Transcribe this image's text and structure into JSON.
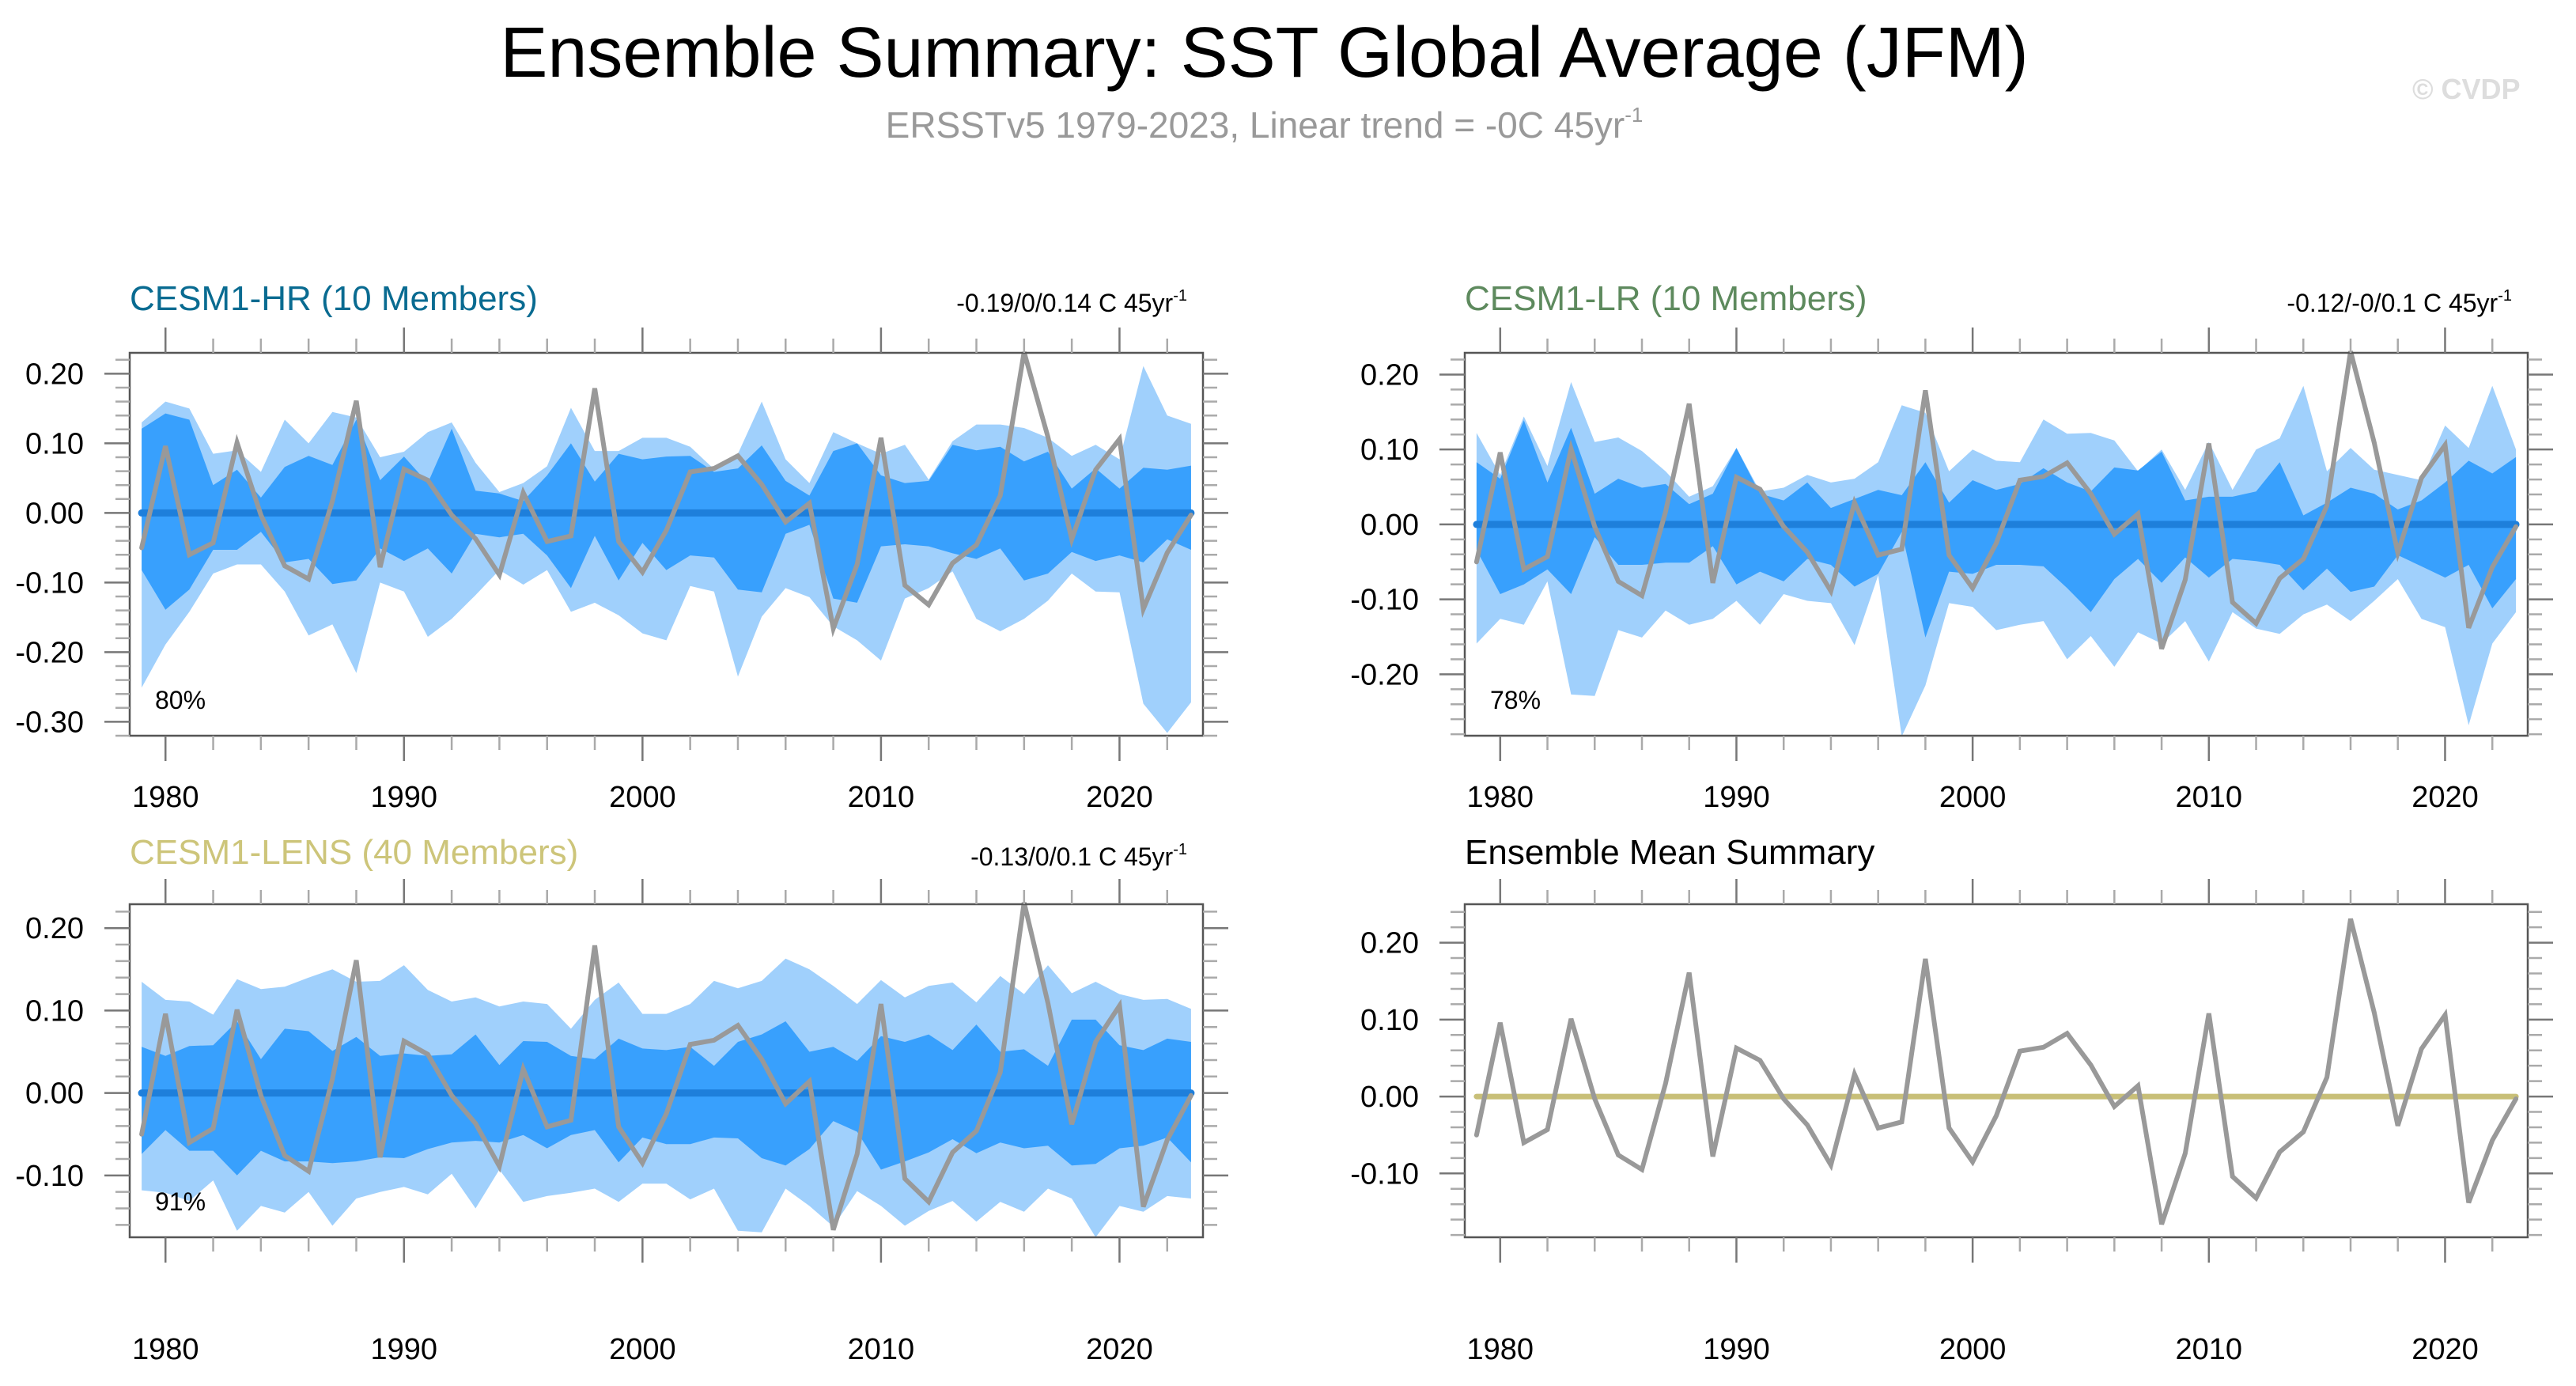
{
  "header": {
    "title": "Ensemble Summary: SST Global Average (JFM)",
    "subtitle": "ERSSTv5 1979-2023, Linear trend = -0C 45yr",
    "subtitle_superscript": "-1",
    "watermark": "© CVDP"
  },
  "colors": {
    "outer_band": "#a0d0fc",
    "inner_band": "#38a0fd",
    "ensemble_mean_line": "#1e7fdb",
    "observation_line": "#999999",
    "mean_summary_line": "#c8bf78",
    "frame": "#555555"
  },
  "chart_data": {
    "type": "area",
    "shared_x": {
      "years": [
        1979,
        1980,
        1981,
        1982,
        1983,
        1984,
        1985,
        1986,
        1987,
        1988,
        1989,
        1990,
        1991,
        1992,
        1993,
        1994,
        1995,
        1996,
        1997,
        1998,
        1999,
        2000,
        2001,
        2002,
        2003,
        2004,
        2005,
        2006,
        2007,
        2008,
        2009,
        2010,
        2011,
        2012,
        2013,
        2014,
        2015,
        2016,
        2017,
        2018,
        2019,
        2020,
        2021,
        2022,
        2023
      ],
      "tick_labels": [
        "1980",
        "1990",
        "2000",
        "2010",
        "2020"
      ],
      "xlim": [
        1978.5,
        2023.5
      ]
    },
    "observation": {
      "name": "ERSSTv5",
      "values": [
        -0.05,
        0.096,
        -0.06,
        -0.043,
        0.101,
        -0.003,
        -0.076,
        -0.095,
        0.017,
        0.161,
        -0.078,
        0.063,
        0.047,
        -0.003,
        -0.037,
        -0.089,
        0.029,
        -0.041,
        -0.033,
        0.179,
        -0.041,
        -0.085,
        -0.025,
        0.059,
        0.064,
        0.082,
        0.041,
        -0.013,
        0.014,
        -0.166,
        -0.074,
        0.108,
        -0.104,
        -0.132,
        -0.072,
        -0.046,
        0.025,
        0.231,
        0.109,
        -0.038,
        0.062,
        0.106,
        -0.138,
        -0.057,
        -0.003
      ]
    },
    "panels": [
      {
        "id": "hr",
        "title": "CESM1-HR (10 Members)",
        "title_color": "#096b91",
        "trend_label": "-0.19/0/0.14 C 45yr",
        "trend_superscript": "-1",
        "percent_label": "80%",
        "ylim": [
          -0.32,
          0.23
        ],
        "yticks": [
          0.2,
          0.1,
          0.0,
          -0.1,
          -0.2,
          -0.3
        ],
        "ytick_labels": [
          "0.20",
          "0.10",
          "0.00",
          "-0.10",
          "-0.20",
          "-0.30"
        ],
        "ensemble_mean": 0.0,
        "outer_upper": [
          0.13,
          0.16,
          0.15,
          0.085,
          0.09,
          0.059,
          0.134,
          0.1,
          0.145,
          0.137,
          0.08,
          0.088,
          0.116,
          0.13,
          0.072,
          0.03,
          0.043,
          0.067,
          0.151,
          0.089,
          0.089,
          0.108,
          0.108,
          0.095,
          0.063,
          0.085,
          0.16,
          0.077,
          0.043,
          0.116,
          0.1,
          0.085,
          0.098,
          0.048,
          0.103,
          0.127,
          0.127,
          0.122,
          0.108,
          0.082,
          0.098,
          0.077,
          0.211,
          0.14,
          0.128
        ],
        "inner_upper": [
          0.121,
          0.143,
          0.134,
          0.04,
          0.062,
          0.022,
          0.066,
          0.082,
          0.069,
          0.134,
          0.047,
          0.081,
          0.043,
          0.121,
          0.032,
          0.028,
          0.017,
          0.054,
          0.1,
          0.045,
          0.085,
          0.077,
          0.081,
          0.082,
          0.059,
          0.064,
          0.097,
          0.046,
          0.025,
          0.089,
          0.1,
          0.054,
          0.043,
          0.046,
          0.098,
          0.09,
          0.095,
          0.074,
          0.088,
          0.035,
          0.064,
          0.035,
          0.065,
          0.062,
          0.068
        ],
        "inner_lower": [
          -0.082,
          -0.139,
          -0.11,
          -0.053,
          -0.053,
          -0.027,
          -0.071,
          -0.066,
          -0.102,
          -0.097,
          -0.051,
          -0.069,
          -0.051,
          -0.087,
          -0.03,
          -0.035,
          -0.03,
          -0.061,
          -0.108,
          -0.033,
          -0.097,
          -0.043,
          -0.082,
          -0.061,
          -0.064,
          -0.11,
          -0.114,
          -0.03,
          -0.017,
          -0.123,
          -0.129,
          -0.048,
          -0.045,
          -0.048,
          -0.058,
          -0.066,
          -0.051,
          -0.097,
          -0.087,
          -0.056,
          -0.069,
          -0.061,
          -0.071,
          -0.038,
          -0.053
        ],
        "outer_lower": [
          -0.251,
          -0.189,
          -0.142,
          -0.087,
          -0.074,
          -0.074,
          -0.113,
          -0.176,
          -0.16,
          -0.23,
          -0.1,
          -0.113,
          -0.178,
          -0.152,
          -0.118,
          -0.082,
          -0.103,
          -0.082,
          -0.142,
          -0.129,
          -0.147,
          -0.173,
          -0.183,
          -0.105,
          -0.113,
          -0.235,
          -0.149,
          -0.108,
          -0.121,
          -0.163,
          -0.183,
          -0.212,
          -0.123,
          -0.108,
          -0.084,
          -0.152,
          -0.17,
          -0.152,
          -0.126,
          -0.087,
          -0.113,
          -0.114,
          -0.274,
          -0.316,
          -0.272
        ]
      },
      {
        "id": "lr",
        "title": "CESM1-LR (10 Members)",
        "title_color": "#5e8a5e",
        "trend_label": "-0.12/-0/0.1 C 45yr",
        "trend_superscript": "-1",
        "percent_label": "78%",
        "ylim": [
          -0.282,
          0.229
        ],
        "yticks": [
          0.2,
          0.1,
          0.0,
          -0.1,
          -0.2
        ],
        "ytick_labels": [
          "0.20",
          "0.10",
          "0.00",
          "-0.10",
          "-0.20"
        ],
        "ensemble_mean": 0.0,
        "outer_upper": [
          0.122,
          0.066,
          0.144,
          0.078,
          0.19,
          0.11,
          0.116,
          0.098,
          0.071,
          0.037,
          0.051,
          0.102,
          0.044,
          0.049,
          0.066,
          0.056,
          0.061,
          0.083,
          0.159,
          0.149,
          0.071,
          0.1,
          0.085,
          0.083,
          0.14,
          0.121,
          0.122,
          0.112,
          0.071,
          0.1,
          0.046,
          0.11,
          0.046,
          0.1,
          0.115,
          0.185,
          0.071,
          0.102,
          0.073,
          0.066,
          0.059,
          0.132,
          0.102,
          0.185,
          0.1
        ],
        "inner_upper": [
          0.083,
          0.061,
          0.139,
          0.056,
          0.129,
          0.041,
          0.061,
          0.049,
          0.054,
          0.027,
          0.041,
          0.102,
          0.041,
          0.032,
          0.056,
          0.022,
          0.034,
          0.046,
          0.039,
          0.083,
          0.029,
          0.059,
          0.046,
          0.054,
          0.075,
          0.056,
          0.044,
          0.076,
          0.072,
          0.097,
          0.032,
          0.037,
          0.037,
          0.044,
          0.083,
          0.012,
          0.029,
          0.049,
          0.041,
          0.02,
          0.032,
          0.056,
          0.085,
          0.068,
          0.09
        ],
        "inner_lower": [
          -0.034,
          -0.093,
          -0.08,
          -0.06,
          -0.093,
          -0.017,
          -0.054,
          -0.054,
          -0.051,
          -0.051,
          -0.029,
          -0.08,
          -0.063,
          -0.076,
          -0.046,
          -0.054,
          -0.083,
          -0.066,
          -0.01,
          -0.151,
          -0.063,
          -0.066,
          -0.054,
          -0.054,
          -0.056,
          -0.085,
          -0.117,
          -0.073,
          -0.046,
          -0.078,
          -0.044,
          -0.071,
          -0.046,
          -0.049,
          -0.054,
          -0.088,
          -0.059,
          -0.09,
          -0.083,
          -0.041,
          -0.056,
          -0.071,
          -0.054,
          -0.112,
          -0.073
        ],
        "outer_lower": [
          -0.159,
          -0.126,
          -0.134,
          -0.076,
          -0.227,
          -0.229,
          -0.141,
          -0.151,
          -0.115,
          -0.134,
          -0.126,
          -0.102,
          -0.134,
          -0.093,
          -0.102,
          -0.105,
          -0.161,
          -0.068,
          -0.283,
          -0.215,
          -0.105,
          -0.11,
          -0.141,
          -0.134,
          -0.129,
          -0.18,
          -0.149,
          -0.19,
          -0.144,
          -0.159,
          -0.129,
          -0.183,
          -0.117,
          -0.139,
          -0.146,
          -0.12,
          -0.107,
          -0.129,
          -0.102,
          -0.073,
          -0.126,
          -0.137,
          -0.268,
          -0.159,
          -0.117
        ]
      },
      {
        "id": "lens",
        "title": "CESM1-LENS (40 Members)",
        "title_color": "#cdc57a",
        "trend_label": "-0.13/0/0.1 C 45yr",
        "trend_superscript": "-1",
        "percent_label": "91%",
        "ylim": [
          -0.175,
          0.229
        ],
        "yticks": [
          0.2,
          0.1,
          0.0,
          -0.1
        ],
        "ytick_labels": [
          "0.20",
          "0.10",
          "0.00",
          "-0.10"
        ],
        "ensemble_mean": 0.0,
        "outer_upper": [
          0.135,
          0.113,
          0.111,
          0.095,
          0.138,
          0.126,
          0.129,
          0.14,
          0.15,
          0.135,
          0.136,
          0.155,
          0.125,
          0.111,
          0.116,
          0.105,
          0.111,
          0.108,
          0.078,
          0.113,
          0.134,
          0.096,
          0.096,
          0.108,
          0.136,
          0.127,
          0.136,
          0.163,
          0.15,
          0.13,
          0.108,
          0.137,
          0.116,
          0.13,
          0.134,
          0.11,
          0.142,
          0.12,
          0.155,
          0.121,
          0.135,
          0.12,
          0.113,
          0.114,
          0.102
        ],
        "inner_upper": [
          0.056,
          0.045,
          0.057,
          0.058,
          0.087,
          0.041,
          0.078,
          0.075,
          0.051,
          0.068,
          0.045,
          0.048,
          0.045,
          0.047,
          0.071,
          0.034,
          0.063,
          0.062,
          0.045,
          0.041,
          0.066,
          0.054,
          0.052,
          0.056,
          0.033,
          0.062,
          0.071,
          0.087,
          0.05,
          0.056,
          0.039,
          0.069,
          0.062,
          0.071,
          0.052,
          0.083,
          0.05,
          0.053,
          0.033,
          0.089,
          0.089,
          0.058,
          0.052,
          0.066,
          0.062
        ],
        "inner_lower": [
          -0.074,
          -0.045,
          -0.07,
          -0.07,
          -0.1,
          -0.07,
          -0.083,
          -0.083,
          -0.085,
          -0.083,
          -0.078,
          -0.079,
          -0.068,
          -0.06,
          -0.058,
          -0.06,
          -0.051,
          -0.067,
          -0.051,
          -0.045,
          -0.084,
          -0.054,
          -0.062,
          -0.062,
          -0.054,
          -0.055,
          -0.079,
          -0.088,
          -0.068,
          -0.034,
          -0.047,
          -0.093,
          -0.083,
          -0.072,
          -0.056,
          -0.073,
          -0.06,
          -0.067,
          -0.064,
          -0.088,
          -0.086,
          -0.067,
          -0.064,
          -0.054,
          -0.084
        ],
        "outer_lower": [
          -0.118,
          -0.121,
          -0.131,
          -0.106,
          -0.167,
          -0.137,
          -0.145,
          -0.12,
          -0.161,
          -0.128,
          -0.12,
          -0.114,
          -0.123,
          -0.098,
          -0.14,
          -0.093,
          -0.132,
          -0.125,
          -0.121,
          -0.116,
          -0.132,
          -0.11,
          -0.11,
          -0.129,
          -0.116,
          -0.167,
          -0.169,
          -0.116,
          -0.137,
          -0.162,
          -0.119,
          -0.137,
          -0.161,
          -0.143,
          -0.131,
          -0.156,
          -0.132,
          -0.144,
          -0.116,
          -0.128,
          -0.175,
          -0.137,
          -0.144,
          -0.125,
          -0.128
        ]
      },
      {
        "id": "mean",
        "title": "Ensemble Mean Summary",
        "title_color": "#000000",
        "trend_label": "",
        "percent_label": "",
        "ylim": [
          -0.183,
          0.25
        ],
        "yticks": [
          0.2,
          0.1,
          0.0,
          -0.1
        ],
        "ytick_labels": [
          "0.20",
          "0.10",
          "0.00",
          "-0.10"
        ],
        "ensemble_mean": 0.0
      }
    ]
  }
}
